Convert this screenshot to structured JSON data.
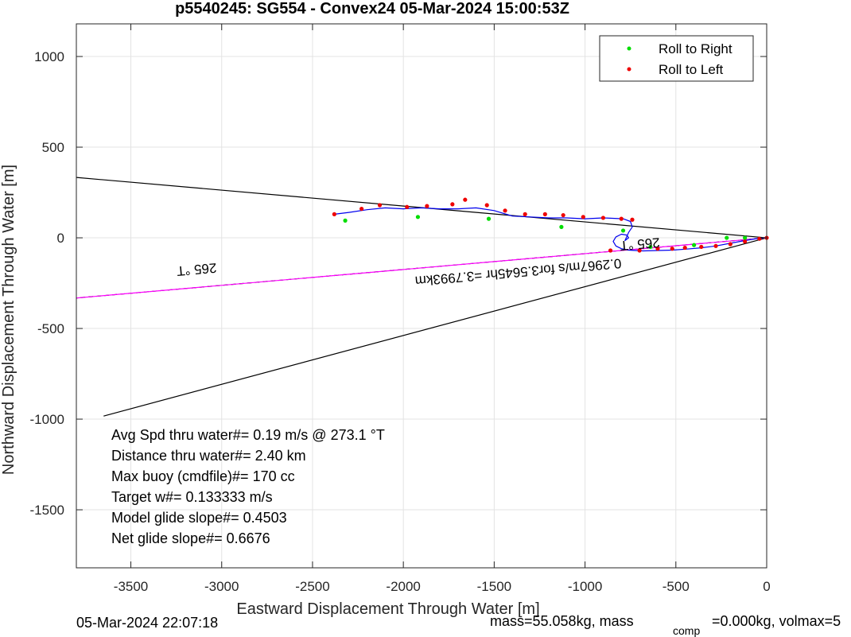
{
  "chart_data": {
    "type": "line",
    "title": "p5540245: SG554 - Convex24 05-Mar-2024 15:00:53Z",
    "xlabel": "Eastward Displacement Through Water [m]",
    "ylabel": "Northward Displacement Through Water [m]",
    "xlim": [
      -3800,
      0
    ],
    "ylim": [
      -1820,
      1180
    ],
    "xticks": [
      -3500,
      -3000,
      -2500,
      -2000,
      -1500,
      -1000,
      -500,
      0
    ],
    "xtick_labels": [
      "-3500",
      "-3000",
      "-2500",
      "-2000",
      "-1500",
      "-1000",
      "-500",
      "0"
    ],
    "yticks": [
      1000,
      500,
      0,
      -500,
      -1000,
      -1500
    ],
    "ytick_labels": [
      "1000",
      "500",
      "0",
      "-500",
      "-1000",
      "-1500"
    ],
    "grid": true,
    "legend": {
      "placement": "top-right",
      "entries": [
        {
          "label": "Roll to Right",
          "color": "#00dd00"
        },
        {
          "label": "Roll to Left",
          "color": "#ee0000"
        }
      ]
    },
    "lines": [
      {
        "kind": "heading-line",
        "color": "#000000",
        "from": [
          0,
          0
        ],
        "to": [
          -3800,
          333
        ]
      },
      {
        "kind": "heading-line",
        "color": "#000000",
        "from": [
          0,
          0
        ],
        "to": [
          -3650,
          -983
        ]
      },
      {
        "kind": "dashed-heading-line",
        "color": "#000000",
        "from": [
          0,
          0
        ],
        "to": [
          -3800,
          -332
        ]
      },
      {
        "kind": "average-track",
        "color": "#ff00ff",
        "from": [
          0,
          0
        ],
        "to": [
          -3800,
          -332
        ]
      }
    ],
    "track": {
      "color": "#0000ee",
      "points": [
        [
          0,
          0
        ],
        [
          -40,
          -2
        ],
        [
          -120,
          -15
        ],
        [
          -200,
          -30
        ],
        [
          -280,
          -45
        ],
        [
          -360,
          -55
        ],
        [
          -440,
          -62
        ],
        [
          -520,
          -68
        ],
        [
          -600,
          -70
        ],
        [
          -680,
          -72
        ],
        [
          -760,
          -68
        ],
        [
          -800,
          -60
        ],
        [
          -830,
          -45
        ],
        [
          -845,
          -20
        ],
        [
          -830,
          5
        ],
        [
          -800,
          20
        ],
        [
          -770,
          15
        ],
        [
          -760,
          0
        ],
        [
          -780,
          -15
        ],
        [
          -760,
          30
        ],
        [
          -740,
          60
        ],
        [
          -750,
          90
        ],
        [
          -790,
          105
        ],
        [
          -900,
          110
        ],
        [
          -1000,
          105
        ],
        [
          -1100,
          110
        ],
        [
          -1200,
          110
        ],
        [
          -1300,
          115
        ],
        [
          -1400,
          120
        ],
        [
          -1500,
          150
        ],
        [
          -1600,
          165
        ],
        [
          -1700,
          160
        ],
        [
          -1800,
          160
        ],
        [
          -1900,
          165
        ],
        [
          -2000,
          160
        ],
        [
          -2100,
          165
        ],
        [
          -2200,
          155
        ],
        [
          -2300,
          140
        ],
        [
          -2380,
          130
        ]
      ]
    },
    "roll_right_points": [
      [
        -2320,
        95
      ],
      [
        -1920,
        115
      ],
      [
        -1530,
        105
      ],
      [
        -1130,
        60
      ],
      [
        -790,
        40
      ],
      [
        -640,
        -50
      ],
      [
        -400,
        -40
      ],
      [
        -220,
        0
      ],
      [
        -120,
        0
      ]
    ],
    "roll_left_points": [
      [
        -2380,
        130
      ],
      [
        -2230,
        160
      ],
      [
        -2130,
        180
      ],
      [
        -1980,
        170
      ],
      [
        -1870,
        175
      ],
      [
        -1730,
        185
      ],
      [
        -1660,
        210
      ],
      [
        -1540,
        180
      ],
      [
        -1440,
        150
      ],
      [
        -1330,
        130
      ],
      [
        -1220,
        130
      ],
      [
        -1120,
        125
      ],
      [
        -1010,
        115
      ],
      [
        -900,
        110
      ],
      [
        -800,
        105
      ],
      [
        -740,
        100
      ],
      [
        -860,
        -70
      ],
      [
        -700,
        -70
      ],
      [
        -600,
        -60
      ],
      [
        -520,
        -60
      ],
      [
        -450,
        -55
      ],
      [
        -360,
        -50
      ],
      [
        -280,
        -45
      ],
      [
        -200,
        -35
      ],
      [
        -120,
        -20
      ],
      [
        -40,
        -5
      ],
      [
        0,
        0
      ]
    ],
    "annotations": [
      {
        "text": "265 °T",
        "at": [
          -3140,
          -150
        ],
        "rotate": 174.9
      },
      {
        "text": "0.2967m/s for3.5645hr =3.7993km",
        "at": [
          -1370,
          -165
        ],
        "rotate": 175
      },
      {
        "text": "265 °T",
        "at": [
          -700,
          -10
        ],
        "rotate": 174.9
      }
    ],
    "stats_text": [
      "Avg Spd thru water#=  0.19 m/s @ 273.1          °T",
      "Distance thru water#=  2.40 km",
      "Max buoy (cmdfile)#= 170 cc",
      "Target w#= 0.133333 m/s",
      "Model glide slope#= 0.4503",
      "Net glide slope#= 0.6676"
    ]
  },
  "footer": {
    "timestamp": "05-Mar-2024 22:07:18",
    "mass": "mass=55.058kg, mass",
    "comp": "comp",
    "rest": "=0.000kg, volmax=5"
  }
}
